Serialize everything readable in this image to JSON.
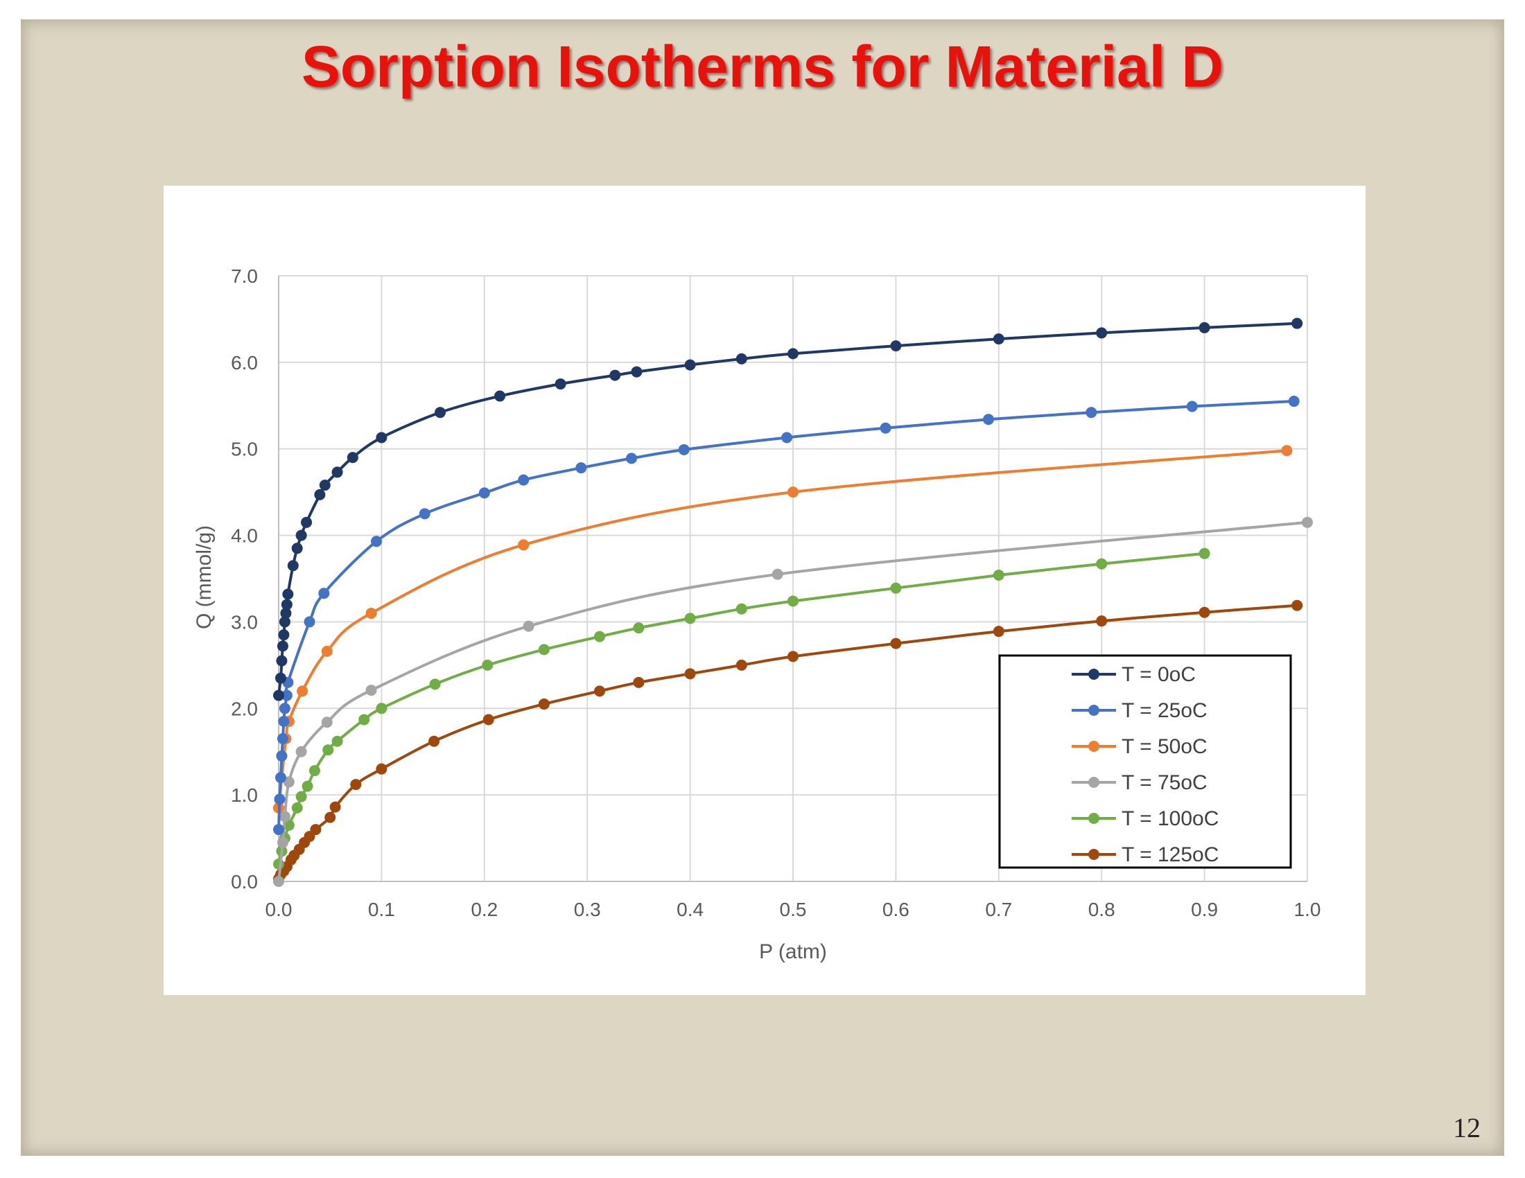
{
  "slide": {
    "title": "Sorption Isotherms for Material D",
    "page_number": "12"
  },
  "chart_data": {
    "type": "line",
    "xlabel": "P (atm)",
    "ylabel": "Q (mmol/g)",
    "xlim": [
      0,
      1.0
    ],
    "ylim": [
      0,
      7.0
    ],
    "xticks": [
      "0.0",
      "0.1",
      "0.2",
      "0.3",
      "0.4",
      "0.5",
      "0.6",
      "0.7",
      "0.8",
      "0.9",
      "1.0"
    ],
    "yticks": [
      "0.0",
      "1.0",
      "2.0",
      "3.0",
      "4.0",
      "5.0",
      "6.0",
      "7.0"
    ],
    "grid": true,
    "legend_position": "bottom-right",
    "series": [
      {
        "name": "T = 0oC",
        "color": "#203864",
        "points": [
          [
            0.0,
            2.15
          ],
          [
            0.002,
            2.35
          ],
          [
            0.003,
            2.55
          ],
          [
            0.004,
            2.72
          ],
          [
            0.005,
            2.85
          ],
          [
            0.006,
            3.0
          ],
          [
            0.007,
            3.1
          ],
          [
            0.008,
            3.2
          ],
          [
            0.009,
            3.32
          ],
          [
            0.014,
            3.65
          ],
          [
            0.018,
            3.85
          ],
          [
            0.022,
            4.0
          ],
          [
            0.027,
            4.15
          ],
          [
            0.04,
            4.47
          ],
          [
            0.045,
            4.58
          ],
          [
            0.057,
            4.73
          ],
          [
            0.072,
            4.9
          ],
          [
            0.1,
            5.13
          ],
          [
            0.157,
            5.42
          ],
          [
            0.215,
            5.61
          ],
          [
            0.274,
            5.75
          ],
          [
            0.327,
            5.85
          ],
          [
            0.348,
            5.89
          ],
          [
            0.4,
            5.97
          ],
          [
            0.45,
            6.04
          ],
          [
            0.5,
            6.1
          ],
          [
            0.6,
            6.19
          ],
          [
            0.7,
            6.27
          ],
          [
            0.8,
            6.34
          ],
          [
            0.9,
            6.4
          ],
          [
            0.99,
            6.45
          ]
        ]
      },
      {
        "name": "T = 25oC",
        "color": "#4472c4",
        "points": [
          [
            0.0,
            0.6
          ],
          [
            0.001,
            0.95
          ],
          [
            0.002,
            1.2
          ],
          [
            0.003,
            1.45
          ],
          [
            0.004,
            1.65
          ],
          [
            0.005,
            1.85
          ],
          [
            0.006,
            2.0
          ],
          [
            0.008,
            2.15
          ],
          [
            0.009,
            2.3
          ],
          [
            0.03,
            3.0
          ],
          [
            0.044,
            3.33
          ],
          [
            0.095,
            3.93
          ],
          [
            0.142,
            4.25
          ],
          [
            0.2,
            4.49
          ],
          [
            0.238,
            4.64
          ],
          [
            0.294,
            4.78
          ],
          [
            0.343,
            4.89
          ],
          [
            0.394,
            4.99
          ],
          [
            0.494,
            5.13
          ],
          [
            0.59,
            5.24
          ],
          [
            0.69,
            5.34
          ],
          [
            0.79,
            5.42
          ],
          [
            0.888,
            5.49
          ],
          [
            0.987,
            5.55
          ]
        ]
      },
      {
        "name": "T = 50oC",
        "color": "#ed7d31",
        "points": [
          [
            0.0,
            0.85
          ],
          [
            0.007,
            1.65
          ],
          [
            0.01,
            1.85
          ],
          [
            0.023,
            2.2
          ],
          [
            0.047,
            2.66
          ],
          [
            0.09,
            3.1
          ],
          [
            0.238,
            3.89
          ],
          [
            0.5,
            4.5
          ],
          [
            0.98,
            4.98
          ]
        ]
      },
      {
        "name": "T = 75oC",
        "color": "#a5a5a5",
        "points": [
          [
            0.0,
            0.0
          ],
          [
            0.004,
            0.45
          ],
          [
            0.006,
            0.75
          ],
          [
            0.01,
            1.15
          ],
          [
            0.022,
            1.5
          ],
          [
            0.047,
            1.84
          ],
          [
            0.09,
            2.21
          ],
          [
            0.243,
            2.95
          ],
          [
            0.485,
            3.55
          ],
          [
            1.0,
            4.15
          ]
        ]
      },
      {
        "name": "T = 100oC",
        "color": "#70ad47",
        "points": [
          [
            0.0,
            0.2
          ],
          [
            0.003,
            0.35
          ],
          [
            0.006,
            0.5
          ],
          [
            0.01,
            0.65
          ],
          [
            0.018,
            0.85
          ],
          [
            0.022,
            0.98
          ],
          [
            0.028,
            1.1
          ],
          [
            0.035,
            1.28
          ],
          [
            0.048,
            1.52
          ],
          [
            0.057,
            1.62
          ],
          [
            0.083,
            1.87
          ],
          [
            0.1,
            2.0
          ],
          [
            0.152,
            2.28
          ],
          [
            0.203,
            2.5
          ],
          [
            0.258,
            2.68
          ],
          [
            0.312,
            2.83
          ],
          [
            0.35,
            2.93
          ],
          [
            0.4,
            3.04
          ],
          [
            0.45,
            3.15
          ],
          [
            0.5,
            3.24
          ],
          [
            0.6,
            3.39
          ],
          [
            0.7,
            3.54
          ],
          [
            0.8,
            3.67
          ],
          [
            0.9,
            3.79
          ]
        ]
      },
      {
        "name": "T = 125oC",
        "color": "#9e480e",
        "points": [
          [
            0.0,
            0.03
          ],
          [
            0.002,
            0.08
          ],
          [
            0.005,
            0.12
          ],
          [
            0.008,
            0.17
          ],
          [
            0.012,
            0.25
          ],
          [
            0.015,
            0.3
          ],
          [
            0.02,
            0.37
          ],
          [
            0.025,
            0.45
          ],
          [
            0.03,
            0.52
          ],
          [
            0.036,
            0.6
          ],
          [
            0.05,
            0.74
          ],
          [
            0.055,
            0.86
          ],
          [
            0.075,
            1.12
          ],
          [
            0.1,
            1.3
          ],
          [
            0.151,
            1.62
          ],
          [
            0.204,
            1.87
          ],
          [
            0.258,
            2.05
          ],
          [
            0.312,
            2.2
          ],
          [
            0.35,
            2.3
          ],
          [
            0.4,
            2.4
          ],
          [
            0.45,
            2.5
          ],
          [
            0.5,
            2.6
          ],
          [
            0.6,
            2.75
          ],
          [
            0.7,
            2.89
          ],
          [
            0.8,
            3.01
          ],
          [
            0.9,
            3.11
          ],
          [
            0.99,
            3.19
          ]
        ]
      }
    ]
  }
}
